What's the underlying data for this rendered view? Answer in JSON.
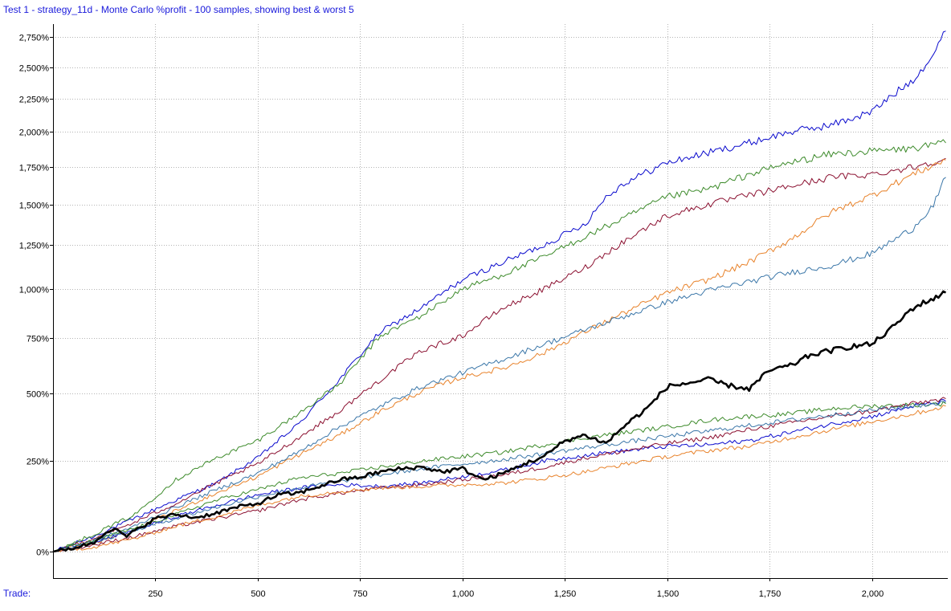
{
  "title": "Test 1 - strategy_11d - Monte Carlo %profit - 100 samples, showing best & worst 5",
  "x_axis_caption": "Trade:",
  "colors": {
    "title": "#1a1adb",
    "grid": "#b4b4b4",
    "axis": "#000000",
    "main_series": "#000000"
  },
  "chart_data": {
    "type": "line",
    "xlabel": "Trade:",
    "ylabel": "",
    "xlim": [
      0,
      2185
    ],
    "ylim": [
      0,
      2900
    ],
    "y_scale": "sqrt",
    "grid": true,
    "x_ticks": [
      250,
      500,
      750,
      1000,
      1250,
      1500,
      1750,
      2000
    ],
    "x_tick_labels": [
      "250",
      "500",
      "750",
      "1,000",
      "1,250",
      "1,500",
      "1,750",
      "2,000"
    ],
    "y_ticks": [
      0,
      250,
      500,
      750,
      1000,
      1250,
      1500,
      1750,
      2000,
      2250,
      2500,
      2750
    ],
    "y_tick_labels": [
      "0%",
      "250%",
      "500%",
      "750%",
      "1,000%",
      "1,250%",
      "1,500%",
      "1,750%",
      "2,000%",
      "2,250%",
      "2,500%",
      "2,750%"
    ],
    "series": [
      {
        "color": "#0a0acd",
        "width": 1,
        "points": [
          [
            0,
            0
          ],
          [
            100,
            35
          ],
          [
            200,
            80
          ],
          [
            300,
            130
          ],
          [
            400,
            180
          ],
          [
            500,
            260
          ],
          [
            600,
            380
          ],
          [
            700,
            560
          ],
          [
            800,
            780
          ],
          [
            900,
            900
          ],
          [
            1000,
            1050
          ],
          [
            1100,
            1150
          ],
          [
            1200,
            1250
          ],
          [
            1300,
            1380
          ],
          [
            1350,
            1550
          ],
          [
            1400,
            1650
          ],
          [
            1500,
            1780
          ],
          [
            1600,
            1850
          ],
          [
            1700,
            1920
          ],
          [
            1800,
            2000
          ],
          [
            1900,
            2050
          ],
          [
            2000,
            2150
          ],
          [
            2100,
            2400
          ],
          [
            2150,
            2600
          ],
          [
            2180,
            2800
          ]
        ]
      },
      {
        "color": "#3c8a2a",
        "width": 1,
        "points": [
          [
            0,
            0
          ],
          [
            100,
            40
          ],
          [
            200,
            90
          ],
          [
            300,
            190
          ],
          [
            400,
            260
          ],
          [
            500,
            320
          ],
          [
            600,
            420
          ],
          [
            700,
            540
          ],
          [
            800,
            760
          ],
          [
            900,
            860
          ],
          [
            1000,
            1000
          ],
          [
            1100,
            1080
          ],
          [
            1200,
            1180
          ],
          [
            1300,
            1300
          ],
          [
            1400,
            1420
          ],
          [
            1500,
            1550
          ],
          [
            1600,
            1600
          ],
          [
            1700,
            1700
          ],
          [
            1800,
            1780
          ],
          [
            1900,
            1840
          ],
          [
            2000,
            1860
          ],
          [
            2100,
            1880
          ],
          [
            2180,
            1920
          ]
        ]
      },
      {
        "color": "#8b1030",
        "width": 1,
        "points": [
          [
            0,
            0
          ],
          [
            100,
            30
          ],
          [
            200,
            70
          ],
          [
            300,
            120
          ],
          [
            400,
            180
          ],
          [
            500,
            240
          ],
          [
            600,
            330
          ],
          [
            700,
            430
          ],
          [
            800,
            560
          ],
          [
            900,
            690
          ],
          [
            1000,
            760
          ],
          [
            1100,
            900
          ],
          [
            1200,
            1000
          ],
          [
            1300,
            1120
          ],
          [
            1400,
            1280
          ],
          [
            1500,
            1430
          ],
          [
            1600,
            1500
          ],
          [
            1700,
            1560
          ],
          [
            1800,
            1620
          ],
          [
            1900,
            1680
          ],
          [
            2000,
            1700
          ],
          [
            2100,
            1750
          ],
          [
            2180,
            1810
          ]
        ]
      },
      {
        "color": "#e8822a",
        "width": 1,
        "points": [
          [
            0,
            0
          ],
          [
            100,
            20
          ],
          [
            200,
            50
          ],
          [
            300,
            100
          ],
          [
            400,
            150
          ],
          [
            500,
            200
          ],
          [
            600,
            270
          ],
          [
            700,
            340
          ],
          [
            800,
            430
          ],
          [
            900,
            510
          ],
          [
            1000,
            570
          ],
          [
            1100,
            610
          ],
          [
            1200,
            680
          ],
          [
            1300,
            780
          ],
          [
            1400,
            880
          ],
          [
            1500,
            980
          ],
          [
            1600,
            1050
          ],
          [
            1700,
            1150
          ],
          [
            1800,
            1280
          ],
          [
            1900,
            1450
          ],
          [
            2000,
            1560
          ],
          [
            2100,
            1700
          ],
          [
            2180,
            1800
          ]
        ]
      },
      {
        "color": "#3a76a8",
        "width": 1,
        "points": [
          [
            0,
            0
          ],
          [
            100,
            25
          ],
          [
            200,
            60
          ],
          [
            300,
            110
          ],
          [
            400,
            160
          ],
          [
            500,
            210
          ],
          [
            600,
            280
          ],
          [
            700,
            370
          ],
          [
            800,
            450
          ],
          [
            900,
            530
          ],
          [
            1000,
            590
          ],
          [
            1100,
            650
          ],
          [
            1200,
            720
          ],
          [
            1300,
            790
          ],
          [
            1400,
            860
          ],
          [
            1500,
            930
          ],
          [
            1600,
            990
          ],
          [
            1700,
            1040
          ],
          [
            1800,
            1090
          ],
          [
            1900,
            1130
          ],
          [
            2000,
            1200
          ],
          [
            2100,
            1350
          ],
          [
            2150,
            1500
          ],
          [
            2180,
            1680
          ]
        ]
      },
      {
        "color": "#0a0acd",
        "width": 1,
        "points": [
          [
            0,
            0
          ],
          [
            100,
            20
          ],
          [
            200,
            50
          ],
          [
            300,
            85
          ],
          [
            400,
            115
          ],
          [
            500,
            145
          ],
          [
            600,
            165
          ],
          [
            700,
            175
          ],
          [
            800,
            170
          ],
          [
            900,
            180
          ],
          [
            1000,
            200
          ],
          [
            1100,
            220
          ],
          [
            1200,
            250
          ],
          [
            1300,
            270
          ],
          [
            1400,
            285
          ],
          [
            1500,
            300
          ],
          [
            1600,
            305
          ],
          [
            1700,
            320
          ],
          [
            1800,
            350
          ],
          [
            1900,
            380
          ],
          [
            2000,
            410
          ],
          [
            2100,
            450
          ],
          [
            2180,
            470
          ]
        ]
      },
      {
        "color": "#3c8a2a",
        "width": 1,
        "points": [
          [
            0,
            0
          ],
          [
            100,
            25
          ],
          [
            200,
            55
          ],
          [
            300,
            90
          ],
          [
            400,
            130
          ],
          [
            500,
            160
          ],
          [
            600,
            195
          ],
          [
            700,
            210
          ],
          [
            800,
            230
          ],
          [
            900,
            250
          ],
          [
            1000,
            265
          ],
          [
            1100,
            280
          ],
          [
            1200,
            305
          ],
          [
            1300,
            330
          ],
          [
            1400,
            350
          ],
          [
            1500,
            370
          ],
          [
            1600,
            395
          ],
          [
            1700,
            410
          ],
          [
            1800,
            420
          ],
          [
            1900,
            440
          ],
          [
            2000,
            450
          ],
          [
            2100,
            455
          ],
          [
            2180,
            460
          ]
        ]
      },
      {
        "color": "#8b1030",
        "width": 1,
        "points": [
          [
            0,
            0
          ],
          [
            100,
            15
          ],
          [
            200,
            35
          ],
          [
            300,
            60
          ],
          [
            400,
            80
          ],
          [
            500,
            100
          ],
          [
            600,
            130
          ],
          [
            700,
            150
          ],
          [
            800,
            165
          ],
          [
            900,
            175
          ],
          [
            1000,
            190
          ],
          [
            1100,
            205
          ],
          [
            1200,
            230
          ],
          [
            1300,
            260
          ],
          [
            1400,
            285
          ],
          [
            1500,
            310
          ],
          [
            1600,
            330
          ],
          [
            1700,
            360
          ],
          [
            1800,
            385
          ],
          [
            1900,
            410
          ],
          [
            2000,
            430
          ],
          [
            2100,
            460
          ],
          [
            2180,
            480
          ]
        ]
      },
      {
        "color": "#e8822a",
        "width": 1,
        "points": [
          [
            0,
            0
          ],
          [
            100,
            10
          ],
          [
            200,
            30
          ],
          [
            300,
            60
          ],
          [
            400,
            85
          ],
          [
            500,
            115
          ],
          [
            600,
            140
          ],
          [
            700,
            155
          ],
          [
            800,
            165
          ],
          [
            900,
            170
          ],
          [
            1000,
            175
          ],
          [
            1100,
            180
          ],
          [
            1200,
            195
          ],
          [
            1300,
            215
          ],
          [
            1400,
            240
          ],
          [
            1500,
            265
          ],
          [
            1600,
            285
          ],
          [
            1700,
            300
          ],
          [
            1800,
            330
          ],
          [
            1900,
            360
          ],
          [
            2000,
            390
          ],
          [
            2100,
            420
          ],
          [
            2180,
            450
          ]
        ]
      },
      {
        "color": "#3a76a8",
        "width": 1,
        "points": [
          [
            0,
            0
          ],
          [
            100,
            22
          ],
          [
            200,
            50
          ],
          [
            300,
            80
          ],
          [
            400,
            110
          ],
          [
            500,
            140
          ],
          [
            600,
            165
          ],
          [
            700,
            185
          ],
          [
            800,
            205
          ],
          [
            900,
            225
          ],
          [
            1000,
            240
          ],
          [
            1100,
            255
          ],
          [
            1200,
            275
          ],
          [
            1300,
            295
          ],
          [
            1400,
            315
          ],
          [
            1500,
            335
          ],
          [
            1600,
            355
          ],
          [
            1700,
            375
          ],
          [
            1800,
            395
          ],
          [
            1900,
            415
          ],
          [
            2000,
            435
          ],
          [
            2100,
            450
          ],
          [
            2180,
            465
          ]
        ]
      },
      {
        "color": "#000000",
        "width": 2.6,
        "points": [
          [
            0,
            0
          ],
          [
            50,
            8
          ],
          [
            100,
            20
          ],
          [
            130,
            48
          ],
          [
            150,
            52
          ],
          [
            180,
            35
          ],
          [
            200,
            48
          ],
          [
            250,
            80
          ],
          [
            300,
            90
          ],
          [
            350,
            82
          ],
          [
            400,
            95
          ],
          [
            450,
            110
          ],
          [
            500,
            120
          ],
          [
            550,
            145
          ],
          [
            600,
            150
          ],
          [
            650,
            170
          ],
          [
            700,
            190
          ],
          [
            750,
            198
          ],
          [
            800,
            215
          ],
          [
            850,
            225
          ],
          [
            900,
            230
          ],
          [
            950,
            215
          ],
          [
            1000,
            225
          ],
          [
            1050,
            190
          ],
          [
            1100,
            210
          ],
          [
            1150,
            240
          ],
          [
            1200,
            265
          ],
          [
            1250,
            320
          ],
          [
            1300,
            340
          ],
          [
            1350,
            310
          ],
          [
            1400,
            380
          ],
          [
            1450,
            440
          ],
          [
            1500,
            530
          ],
          [
            1550,
            545
          ],
          [
            1600,
            560
          ],
          [
            1650,
            535
          ],
          [
            1700,
            520
          ],
          [
            1750,
            600
          ],
          [
            1800,
            620
          ],
          [
            1850,
            670
          ],
          [
            1900,
            690
          ],
          [
            1950,
            710
          ],
          [
            2000,
            720
          ],
          [
            2050,
            800
          ],
          [
            2100,
            900
          ],
          [
            2150,
            950
          ],
          [
            2180,
            980
          ]
        ]
      }
    ]
  }
}
